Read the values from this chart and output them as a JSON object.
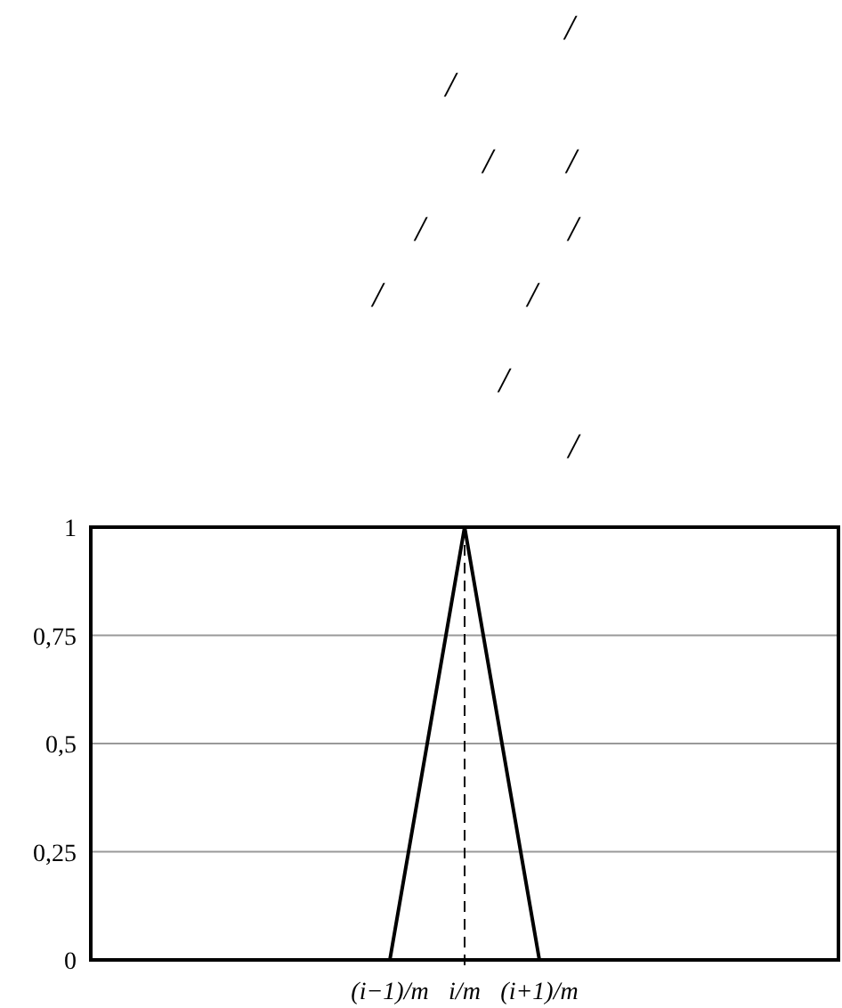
{
  "chart_data": {
    "type": "line",
    "annotations": [
      "/",
      "/",
      "/",
      "/",
      "/",
      "/",
      "/",
      "/",
      "/",
      "/"
    ],
    "categories": [
      null,
      null,
      null,
      null,
      "(i−1)/m",
      "i/m",
      "(i+1)/m",
      null,
      null,
      null,
      null
    ],
    "series": [
      {
        "color": "#000000",
        "values": [
          null,
          null,
          null,
          null,
          0,
          1,
          0,
          null,
          null,
          null,
          null
        ]
      }
    ],
    "ylim": [
      0,
      1
    ],
    "yticks": [
      0,
      {
        "value": 0.25,
        "label": "0,25"
      },
      {
        "value": 0.5,
        "label": "0,5"
      },
      {
        "value": 0.75,
        "label": "0,75"
      },
      1
    ],
    "grid": "y",
    "marker": "none",
    "line_style": "solid",
    "ref_lines": [
      {
        "axis": "x",
        "value": "i/m",
        "line_style": "dashed",
        "color": "#000000"
      }
    ]
  }
}
